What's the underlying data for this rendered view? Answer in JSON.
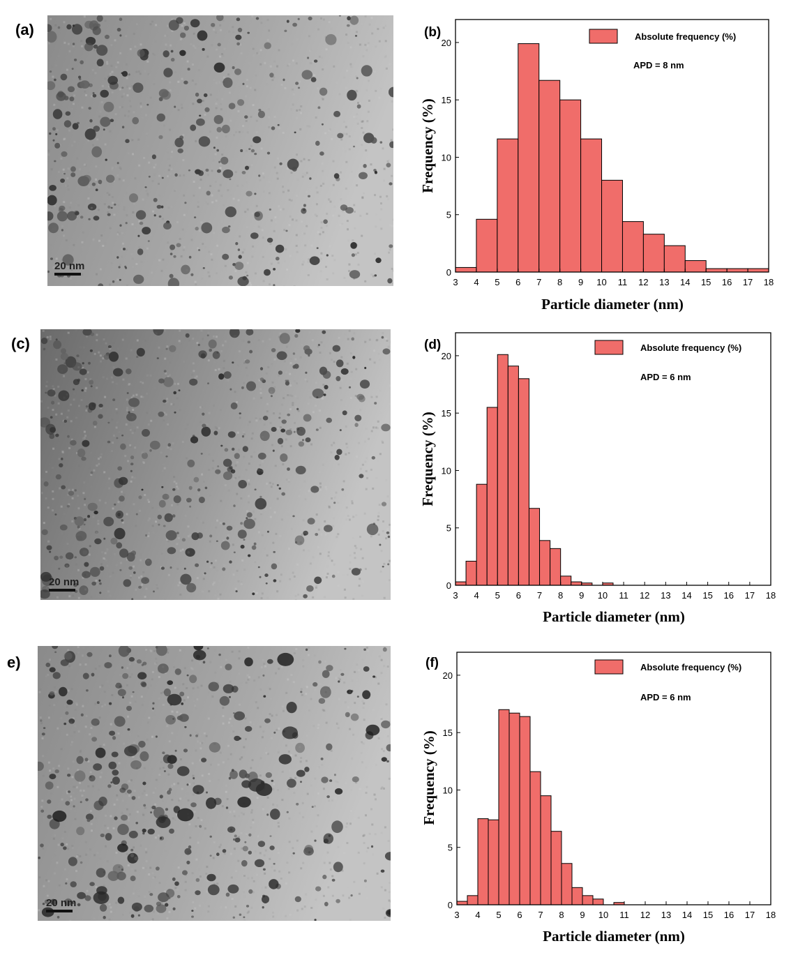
{
  "panels": [
    {
      "label": "(a)",
      "scale_bar": "20 nm"
    },
    {
      "label": "(c)",
      "scale_bar": "20 nm"
    },
    {
      "label": "e)",
      "scale_bar": "20 nm"
    }
  ],
  "chart_data": [
    {
      "type": "bar",
      "panel_label": "(b)",
      "bin_width": 1,
      "x": [
        3,
        4,
        5,
        6,
        7,
        8,
        9,
        10,
        11,
        12,
        13,
        14,
        15,
        16,
        17
      ],
      "values": [
        0.4,
        4.6,
        11.6,
        19.9,
        16.7,
        15.0,
        11.6,
        8.0,
        4.4,
        3.3,
        2.3,
        1.0,
        0.3,
        0.3,
        0.3
      ],
      "legend": "Absolute frequency (%)",
      "annotation": "APD = 8 nm",
      "xlabel": "Particle diameter (nm)",
      "ylabel": "Frequency (%)",
      "xlim": [
        3,
        18
      ],
      "ylim": [
        0,
        22
      ],
      "xticks": [
        3,
        4,
        5,
        6,
        7,
        8,
        9,
        10,
        11,
        12,
        13,
        14,
        15,
        16,
        17,
        18
      ],
      "yticks": [
        0,
        5,
        10,
        15,
        20
      ],
      "color": "#f06d6a"
    },
    {
      "type": "bar",
      "panel_label": "(d)",
      "bin_width": 0.5,
      "x": [
        3.0,
        3.5,
        4.0,
        4.5,
        5.0,
        5.5,
        6.0,
        6.5,
        7.0,
        7.5,
        8.0,
        8.5,
        9.0,
        9.5,
        10.0
      ],
      "values": [
        0.3,
        2.1,
        8.8,
        15.5,
        20.1,
        19.1,
        18.0,
        6.7,
        3.9,
        3.2,
        0.8,
        0.3,
        0.2,
        0.0,
        0.2
      ],
      "legend": "Absolute frequency (%)",
      "annotation": "APD = 6 nm",
      "xlabel": "Particle diameter (nm)",
      "ylabel": "Frequency (%)",
      "xlim": [
        3,
        18
      ],
      "ylim": [
        0,
        22
      ],
      "xticks": [
        3,
        4,
        5,
        6,
        7,
        8,
        9,
        10,
        11,
        12,
        13,
        14,
        15,
        16,
        17,
        18
      ],
      "yticks": [
        0,
        5,
        10,
        15,
        20
      ],
      "color": "#f06d6a"
    },
    {
      "type": "bar",
      "panel_label": "(f)",
      "bin_width": 0.5,
      "x": [
        3.0,
        3.5,
        4.0,
        4.5,
        5.0,
        5.5,
        6.0,
        6.5,
        7.0,
        7.5,
        8.0,
        8.5,
        9.0,
        9.5,
        10.0,
        10.5
      ],
      "values": [
        0.3,
        0.8,
        7.5,
        7.4,
        17.0,
        16.7,
        16.4,
        11.6,
        9.5,
        6.4,
        3.6,
        1.5,
        0.8,
        0.5,
        0.0,
        0.2
      ],
      "legend": "Absolute frequency (%)",
      "annotation": "APD = 6 nm",
      "xlabel": "Particle diameter (nm)",
      "ylabel": "Frequency (%)",
      "xlim": [
        3,
        18
      ],
      "ylim": [
        0,
        22
      ],
      "xticks": [
        3,
        4,
        5,
        6,
        7,
        8,
        9,
        10,
        11,
        12,
        13,
        14,
        15,
        16,
        17,
        18
      ],
      "yticks": [
        0,
        5,
        10,
        15,
        20
      ],
      "color": "#f06d6a"
    }
  ]
}
